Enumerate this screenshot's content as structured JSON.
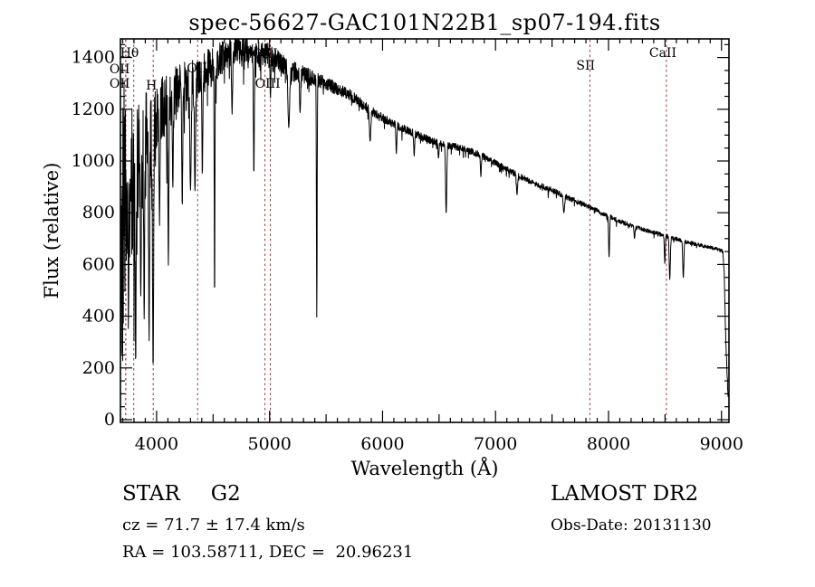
{
  "title": "spec-56627-GAC101N22B1_sp07-194.fits",
  "chart_data": {
    "type": "line",
    "title": "spec-56627-GAC101N22B1_sp07-194.fits",
    "xlabel": "Wavelength (Å)",
    "ylabel": "Flux (relative)",
    "xlim": [
      3680,
      9066
    ],
    "ylim": [
      -10,
      1472
    ],
    "x_major_ticks": [
      4000,
      5000,
      6000,
      7000,
      8000,
      9000
    ],
    "x_minor_step": 100,
    "x_medium_step": 500,
    "y_major_ticks": [
      0,
      200,
      400,
      600,
      800,
      1000,
      1200,
      1400
    ],
    "y_minor_step": 50,
    "grid": false,
    "legend": "none",
    "series_color": "#000000",
    "marker_color": "#8b3b3b",
    "continuum_anchors": [
      [
        3680,
        700,
        640
      ],
      [
        3700,
        780,
        600
      ],
      [
        3730,
        830,
        380
      ],
      [
        3770,
        900,
        300
      ],
      [
        3810,
        950,
        260
      ],
      [
        3860,
        1010,
        220
      ],
      [
        3910,
        1070,
        200
      ],
      [
        3960,
        1110,
        185
      ],
      [
        4010,
        1160,
        150
      ],
      [
        4060,
        1210,
        130
      ],
      [
        4110,
        1235,
        110
      ],
      [
        4210,
        1280,
        100
      ],
      [
        4310,
        1300,
        95
      ],
      [
        4410,
        1340,
        85
      ],
      [
        4510,
        1370,
        75
      ],
      [
        4610,
        1415,
        60
      ],
      [
        4710,
        1440,
        55
      ],
      [
        4810,
        1430,
        50
      ],
      [
        4910,
        1420,
        50
      ],
      [
        5010,
        1400,
        52
      ],
      [
        5110,
        1370,
        45
      ],
      [
        5210,
        1345,
        40
      ],
      [
        5310,
        1330,
        36
      ],
      [
        5510,
        1300,
        26
      ],
      [
        5710,
        1255,
        22
      ],
      [
        5910,
        1190,
        18
      ],
      [
        6110,
        1140,
        16
      ],
      [
        6310,
        1100,
        15
      ],
      [
        6510,
        1065,
        14
      ],
      [
        6710,
        1050,
        13
      ],
      [
        6910,
        1015,
        12
      ],
      [
        7110,
        965,
        12
      ],
      [
        7310,
        920,
        11
      ],
      [
        7510,
        885,
        11
      ],
      [
        7710,
        845,
        10
      ],
      [
        7910,
        805,
        9
      ],
      [
        8110,
        765,
        9
      ],
      [
        8310,
        735,
        8
      ],
      [
        8510,
        710,
        8
      ],
      [
        8710,
        685,
        7
      ],
      [
        8910,
        665,
        7
      ],
      [
        9012,
        652,
        7
      ],
      [
        9024,
        560,
        8
      ],
      [
        9038,
        300,
        15
      ],
      [
        9050,
        170,
        18
      ],
      [
        9058,
        100,
        18
      ]
    ],
    "absorption_lines": [
      [
        3752,
        420,
        4
      ],
      [
        3815,
        235,
        4
      ],
      [
        3860,
        470,
        4
      ],
      [
        3890,
        390,
        4
      ],
      [
        3934,
        290,
        4
      ],
      [
        3969,
        215,
        5
      ],
      [
        4026,
        780,
        4
      ],
      [
        4104,
        590,
        4
      ],
      [
        4144,
        900,
        4
      ],
      [
        4227,
        830,
        4
      ],
      [
        4300,
        880,
        6
      ],
      [
        4340,
        880,
        5
      ],
      [
        4405,
        960,
        4
      ],
      [
        4513,
        470,
        3
      ],
      [
        4668,
        1180,
        4
      ],
      [
        4861,
        945,
        4
      ],
      [
        5008,
        1240,
        3
      ],
      [
        5170,
        1130,
        7
      ],
      [
        5270,
        1190,
        5
      ],
      [
        5418,
        400,
        3
      ],
      [
        5890,
        1075,
        6
      ],
      [
        6122,
        1030,
        4
      ],
      [
        6280,
        1020,
        4
      ],
      [
        6495,
        1010,
        4
      ],
      [
        6563,
        795,
        5
      ],
      [
        6870,
        940,
        4
      ],
      [
        7190,
        870,
        5
      ],
      [
        7605,
        800,
        6
      ],
      [
        8005,
        625,
        4
      ],
      [
        8230,
        700,
        4
      ],
      [
        8498,
        605,
        4
      ],
      [
        8542,
        545,
        5
      ],
      [
        8662,
        550,
        5
      ]
    ],
    "line_markers": [
      {
        "label": "Hθ",
        "wavelength": 3798,
        "label_y": 63,
        "label_dx": -15
      },
      {
        "label": "OII",
        "wavelength": 3727,
        "label_y": 81,
        "label_dx": -18
      },
      {
        "label": "OII",
        "wavelength": 3727,
        "label_y": 97,
        "label_dx": -18
      },
      {
        "label": "H",
        "wavelength": 3970,
        "label_y": 99,
        "label_dx": -8
      },
      {
        "label": "OIII",
        "wavelength": 4363,
        "label_y": 80,
        "label_dx": -12
      },
      {
        "label": "OIII",
        "wavelength": 4959,
        "label_y": 64,
        "label_dx": -14
      },
      {
        "label": "OIII",
        "wavelength": 5007,
        "label_y": 97,
        "label_dx": -17
      },
      {
        "label": "SII",
        "wavelength": 7835,
        "label_y": 77,
        "label_dx": -15
      },
      {
        "label": "CaII",
        "wavelength": 8512,
        "label_y": 63,
        "label_dx": -19
      }
    ]
  },
  "annotations": {
    "object_class": "STAR",
    "subclass": "G2",
    "cz_line": "cz = 71.7 ± 17.4 km/s",
    "radec_line": "RA = 103.58711, DEC =  20.96231",
    "survey": "LAMOST DR2",
    "obsdate": "Obs-Date: 20131130"
  }
}
